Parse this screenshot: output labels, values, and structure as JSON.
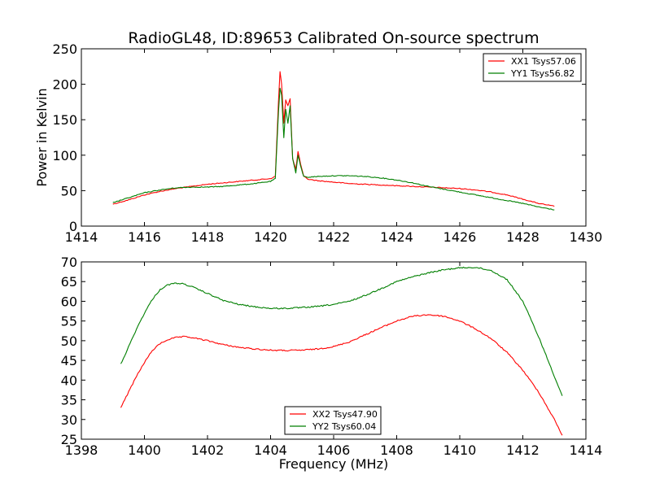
{
  "figure": {
    "title": "RadioGL48, ID:89653 Calibrated On-source spectrum",
    "xlabel": "Frequency (MHz)",
    "ylabel": "Power in Kelvin"
  },
  "chart_data": [
    {
      "type": "line",
      "title": "RadioGL48, ID:89653 Calibrated On-source spectrum",
      "xlabel": "",
      "ylabel": "Power in Kelvin",
      "xlim": [
        1414,
        1430
      ],
      "ylim": [
        0,
        250
      ],
      "xticks": [
        1414,
        1416,
        1418,
        1420,
        1422,
        1424,
        1426,
        1428,
        1430
      ],
      "yticks": [
        0,
        50,
        100,
        150,
        200,
        250
      ],
      "legend": "upper-right",
      "series": [
        {
          "name": "XX1 Tsys57.06",
          "color": "#ff0000",
          "x": [
            1415.0,
            1415.5,
            1416.0,
            1416.5,
            1417.0,
            1417.5,
            1418.0,
            1418.5,
            1419.0,
            1419.5,
            1420.0,
            1420.15,
            1420.25,
            1420.3,
            1420.35,
            1420.42,
            1420.48,
            1420.55,
            1420.62,
            1420.7,
            1420.8,
            1420.87,
            1420.95,
            1421.05,
            1421.2,
            1421.5,
            1422.0,
            1422.5,
            1423.0,
            1423.5,
            1424.0,
            1424.5,
            1425.0,
            1425.5,
            1426.0,
            1426.5,
            1427.0,
            1427.5,
            1428.0,
            1428.5,
            1429.0
          ],
          "y": [
            31,
            37,
            44,
            49,
            53,
            56,
            59,
            61,
            63,
            65,
            67,
            70,
            175,
            218,
            200,
            145,
            178,
            170,
            180,
            95,
            80,
            105,
            88,
            70,
            66,
            64,
            62,
            60,
            59,
            58,
            57,
            56,
            55,
            54,
            53,
            51,
            48,
            44,
            38,
            32,
            28
          ]
        },
        {
          "name": "YY1 Tsys56.82",
          "color": "#007f00",
          "x": [
            1415.0,
            1415.5,
            1416.0,
            1416.5,
            1417.0,
            1417.5,
            1418.0,
            1418.5,
            1419.0,
            1419.5,
            1420.0,
            1420.15,
            1420.25,
            1420.3,
            1420.35,
            1420.42,
            1420.48,
            1420.55,
            1420.62,
            1420.7,
            1420.8,
            1420.87,
            1420.95,
            1421.05,
            1421.2,
            1421.5,
            1422.0,
            1422.5,
            1423.0,
            1423.5,
            1424.0,
            1424.5,
            1425.0,
            1425.5,
            1426.0,
            1426.5,
            1427.0,
            1427.5,
            1428.0,
            1428.5,
            1429.0
          ],
          "y": [
            33,
            40,
            47,
            51,
            54,
            55,
            55,
            56,
            58,
            60,
            63,
            67,
            160,
            195,
            185,
            125,
            165,
            145,
            170,
            95,
            75,
            100,
            85,
            70,
            69,
            70,
            71,
            71,
            70,
            68,
            65,
            61,
            56,
            52,
            48,
            44,
            40,
            36,
            32,
            27,
            23
          ]
        }
      ]
    },
    {
      "type": "line",
      "title": "",
      "xlabel": "Frequency (MHz)",
      "ylabel": "",
      "xlim": [
        1398,
        1414
      ],
      "ylim": [
        25,
        70
      ],
      "xticks": [
        1398,
        1400,
        1402,
        1404,
        1406,
        1408,
        1410,
        1412,
        1414
      ],
      "yticks": [
        25,
        30,
        35,
        40,
        45,
        50,
        55,
        60,
        65,
        70
      ],
      "legend": "lower-center",
      "series": [
        {
          "name": "XX2 Tsys47.90",
          "color": "#ff0000",
          "x": [
            1399.25,
            1399.5,
            1399.75,
            1400.0,
            1400.25,
            1400.5,
            1400.75,
            1401.0,
            1401.25,
            1401.5,
            1402.0,
            1402.5,
            1403.0,
            1403.5,
            1404.0,
            1404.5,
            1405.0,
            1405.5,
            1406.0,
            1406.5,
            1407.0,
            1407.5,
            1408.0,
            1408.5,
            1409.0,
            1409.5,
            1410.0,
            1410.5,
            1411.0,
            1411.5,
            1412.0,
            1412.5,
            1413.0,
            1413.25
          ],
          "y": [
            33,
            37,
            41,
            44.5,
            47.5,
            49.3,
            50.3,
            50.8,
            51,
            50.8,
            50,
            49,
            48.3,
            47.9,
            47.6,
            47.5,
            47.6,
            47.9,
            48.5,
            49.7,
            51.5,
            53.3,
            55,
            56.2,
            56.6,
            56.2,
            55,
            53,
            50.5,
            47,
            42.5,
            37,
            30,
            26
          ]
        },
        {
          "name": "YY2 Tsys60.04",
          "color": "#007f00",
          "x": [
            1399.25,
            1399.5,
            1399.75,
            1400.0,
            1400.25,
            1400.5,
            1400.75,
            1401.0,
            1401.25,
            1401.5,
            1402.0,
            1402.5,
            1403.0,
            1403.5,
            1404.0,
            1404.5,
            1405.0,
            1405.5,
            1406.0,
            1406.5,
            1407.0,
            1407.5,
            1408.0,
            1408.5,
            1409.0,
            1409.5,
            1410.0,
            1410.5,
            1411.0,
            1411.5,
            1412.0,
            1412.5,
            1413.0,
            1413.25
          ],
          "y": [
            44,
            48.5,
            53,
            57,
            60.5,
            63,
            64.2,
            64.6,
            64.4,
            63.7,
            62,
            60.2,
            59.2,
            58.6,
            58.2,
            58.2,
            58.4,
            58.7,
            59.2,
            60,
            61.5,
            63.2,
            65,
            66.2,
            67.2,
            68,
            68.5,
            68.6,
            67.8,
            65.5,
            60,
            51,
            41,
            36
          ]
        }
      ]
    }
  ]
}
